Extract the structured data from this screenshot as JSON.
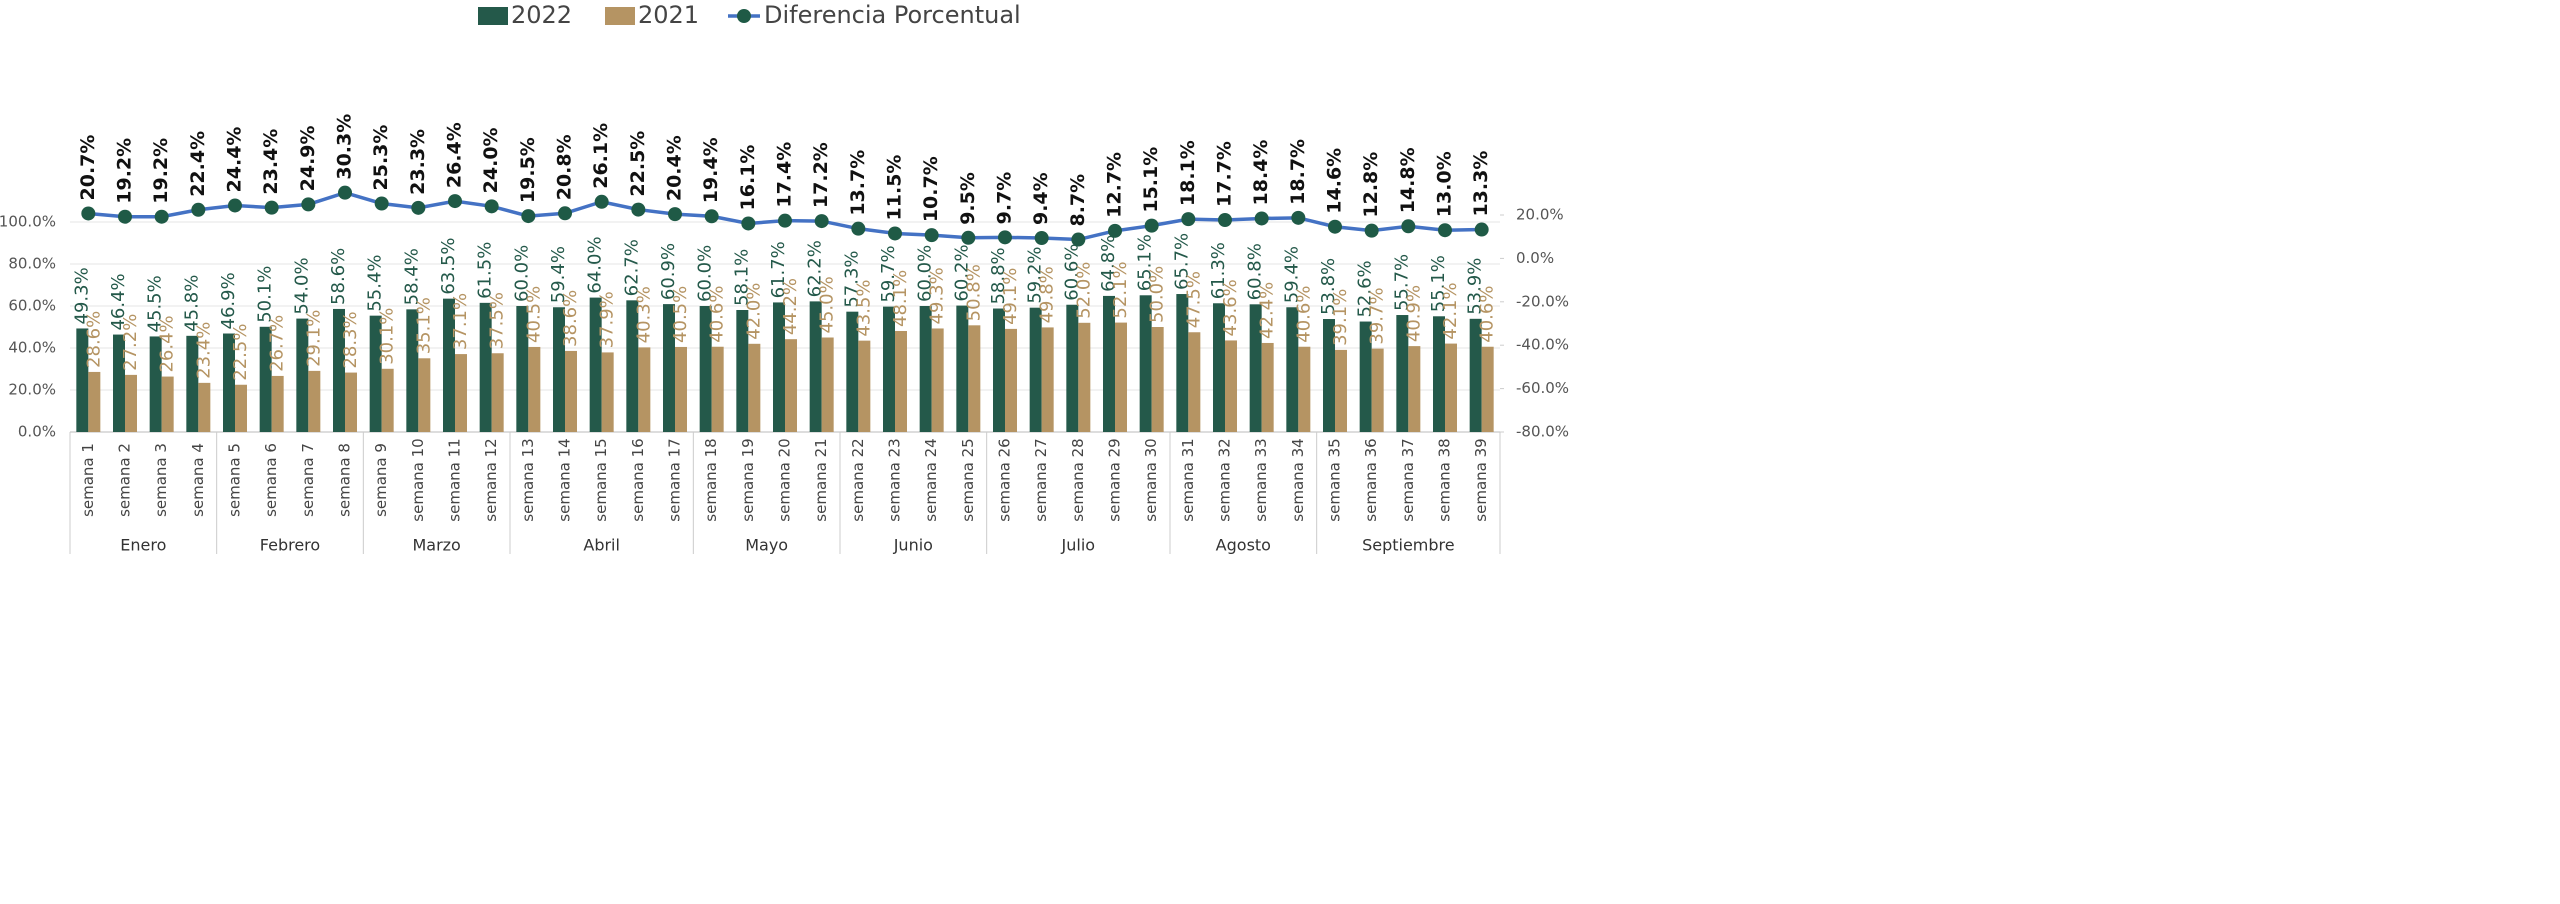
{
  "chart_data": {
    "type": "bar",
    "legend": "top",
    "grid": true,
    "groups": [
      {
        "label": "Enero",
        "categories": [
          "semana 1",
          "semana 2",
          "semana 3",
          "semana 4"
        ]
      },
      {
        "label": "Febrero",
        "categories": [
          "semana 5",
          "semana 6",
          "semana 7",
          "semana 8"
        ]
      },
      {
        "label": "Marzo",
        "categories": [
          "semana 9",
          "semana 10",
          "semana 11",
          "semana 12"
        ]
      },
      {
        "label": "Abril",
        "categories": [
          "semana 13",
          "semana 14",
          "semana 15",
          "semana 16",
          "semana 17"
        ]
      },
      {
        "label": "Mayo",
        "categories": [
          "semana 18",
          "semana 19",
          "semana 20",
          "semana 21"
        ]
      },
      {
        "label": "Junio",
        "categories": [
          "semana 22",
          "semana 23",
          "semana 24",
          "semana 25"
        ]
      },
      {
        "label": "Julio",
        "categories": [
          "semana 26",
          "semana 27",
          "semana 28",
          "semana 29",
          "semana 30"
        ]
      },
      {
        "label": "Agosto",
        "categories": [
          "semana 31",
          "semana 32",
          "semana 33",
          "semana 34"
        ]
      },
      {
        "label": "Septiembre",
        "categories": [
          "semana 35",
          "semana 36",
          "semana 37",
          "semana 38",
          "semana 39"
        ]
      }
    ],
    "series": [
      {
        "name": "2022",
        "color": "#24594a",
        "values": [
          49.3,
          46.4,
          45.5,
          45.8,
          46.9,
          50.1,
          54.0,
          58.6,
          55.4,
          58.4,
          63.5,
          61.5,
          60.0,
          59.4,
          64.0,
          62.7,
          60.9,
          60.0,
          58.1,
          61.7,
          62.2,
          57.3,
          59.7,
          60.0,
          60.2,
          58.8,
          59.2,
          60.6,
          64.8,
          65.1,
          65.7,
          61.3,
          60.8,
          59.4,
          53.8,
          52.6,
          55.7,
          55.1,
          53.9
        ],
        "value_labels": [
          "49.3%",
          "46.4%",
          "45.5%",
          "45.8%",
          "46.9%",
          "50.1%",
          "54.0%",
          "58.6%",
          "55.4%",
          "58.4%",
          "63.5%",
          "61.5%",
          "60.0%",
          "59.4%",
          "64.0%",
          "62.7%",
          "60.9%",
          "60.0%",
          "58.1%",
          "61.7%",
          "62.2%",
          "57.3%",
          "59.7%",
          "60.0%",
          "60.2%",
          "58.8%",
          "59.2%",
          "60.6%",
          "64.8%",
          "65.1%",
          "65.7%",
          "61.3%",
          "60.8%",
          "59.4%",
          "53.8%",
          "52.6%",
          "55.7%",
          "55.1%",
          "53.9%"
        ]
      },
      {
        "name": "2021",
        "color": "#b59463",
        "values": [
          28.6,
          27.2,
          26.4,
          23.4,
          22.5,
          26.7,
          29.1,
          28.3,
          30.1,
          35.1,
          37.1,
          37.5,
          40.5,
          38.6,
          37.9,
          40.3,
          40.5,
          40.6,
          42.0,
          44.2,
          45.0,
          43.5,
          48.1,
          49.3,
          50.8,
          49.1,
          49.8,
          52.0,
          52.1,
          50.0,
          47.5,
          43.6,
          42.4,
          40.6,
          39.1,
          39.7,
          40.9,
          42.1,
          40.6
        ],
        "value_labels": [
          "28.6%",
          "27.2%",
          "26.4%",
          "23.4%",
          "22.5%",
          "26.7%",
          "29.1%",
          "28.3%",
          "30.1%",
          "35.1%",
          "37.1%",
          "37.5%",
          "40.5%",
          "38.6%",
          "37.9%",
          "40.3%",
          "40.5%",
          "40.6%",
          "42.0%",
          "44.2%",
          "45.0%",
          "43.5%",
          "48.1%",
          "49.3%",
          "50.8%",
          "49.1%",
          "49.8%",
          "52.0%",
          "52.1%",
          "50.0%",
          "47.5%",
          "43.6%",
          "42.4%",
          "40.6%",
          "39.1%",
          "39.7%",
          "40.9%",
          "42.1%",
          "40.6%"
        ]
      },
      {
        "name": "Diferencia Porcentual",
        "type": "line",
        "axis": "y2",
        "color": "#4472c4",
        "marker_color": "#1f5a46",
        "values": [
          20.7,
          19.2,
          19.2,
          22.4,
          24.4,
          23.4,
          24.9,
          30.3,
          25.3,
          23.3,
          26.4,
          24.0,
          19.5,
          20.8,
          26.1,
          22.5,
          20.4,
          19.4,
          16.1,
          17.4,
          17.2,
          13.7,
          11.5,
          10.7,
          9.5,
          9.7,
          9.4,
          8.7,
          12.7,
          15.1,
          18.1,
          17.7,
          18.4,
          18.7,
          14.6,
          12.8,
          14.8,
          13.0,
          13.3
        ],
        "value_labels": [
          "20.7%",
          "19.2%",
          "19.2%",
          "22.4%",
          "24.4%",
          "23.4%",
          "24.9%",
          "30.3%",
          "25.3%",
          "23.3%",
          "26.4%",
          "24.0%",
          "19.5%",
          "20.8%",
          "26.1%",
          "22.5%",
          "20.4%",
          "19.4%",
          "16.1%",
          "17.4%",
          "17.2%",
          "13.7%",
          "11.5%",
          "10.7%",
          "9.5%",
          "9.7%",
          "9.4%",
          "8.7%",
          "12.7%",
          "15.1%",
          "18.1%",
          "17.7%",
          "18.4%",
          "18.7%",
          "14.6%",
          "12.8%",
          "14.8%",
          "13.0%",
          "13.3%"
        ]
      }
    ],
    "ylim": [
      0,
      100
    ],
    "yticks": [
      {
        "value": 0,
        "label": "0.0%"
      },
      {
        "value": 20,
        "label": "20.0%"
      },
      {
        "value": 40,
        "label": "40.0%"
      },
      {
        "value": 60,
        "label": "60.0%"
      },
      {
        "value": 80,
        "label": "80.0%"
      },
      {
        "value": 100,
        "label": "100.0%"
      }
    ],
    "y2lim": [
      -80,
      20
    ],
    "y2ticks": [
      {
        "value": -80,
        "label": "-80.0%"
      },
      {
        "value": -60,
        "label": "-60.0%"
      },
      {
        "value": -40,
        "label": "-40.0%"
      },
      {
        "value": -20,
        "label": "-20.0%"
      },
      {
        "value": 0,
        "label": "0.0%"
      },
      {
        "value": 20,
        "label": "20.0%"
      }
    ]
  }
}
